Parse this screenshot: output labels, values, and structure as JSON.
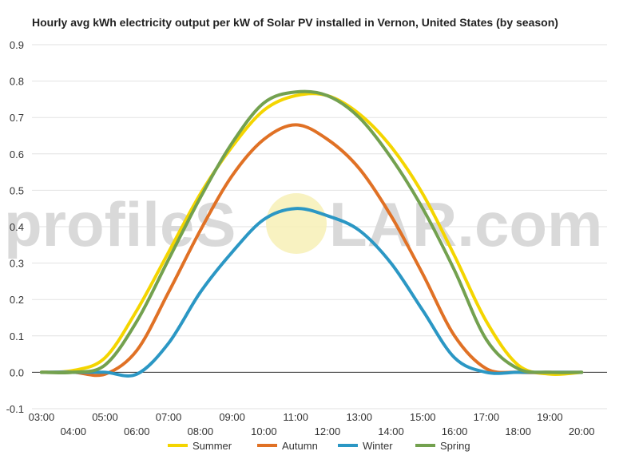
{
  "watermark": {
    "left": "profileS",
    "right": "LAR.com"
  },
  "chart_data": {
    "type": "line",
    "title": "Hourly avg kWh electricity output per kW of Solar PV installed in Vernon, United States (by season)",
    "xlabel": "",
    "ylabel": "",
    "x": [
      3,
      4,
      5,
      6,
      7,
      8,
      9,
      10,
      11,
      12,
      13,
      14,
      15,
      16,
      17,
      18,
      19,
      20
    ],
    "x_tick_labels": [
      "03:00",
      "04:00",
      "05:00",
      "06:00",
      "07:00",
      "08:00",
      "09:00",
      "10:00",
      "11:00",
      "12:00",
      "13:00",
      "14:00",
      "15:00",
      "16:00",
      "17:00",
      "18:00",
      "19:00",
      "20:00"
    ],
    "ylim": [
      -0.1,
      0.9
    ],
    "y_ticks": [
      "0.9",
      "0.8",
      "0.7",
      "0.6",
      "0.5",
      "0.4",
      "0.3",
      "0.2",
      "0.1",
      "0.0",
      "-0.1"
    ],
    "grid": true,
    "legend_position": "bottom",
    "series": [
      {
        "name": "Summer",
        "color": "#f4d500",
        "values": [
          0.0,
          0.005,
          0.04,
          0.17,
          0.33,
          0.49,
          0.62,
          0.72,
          0.76,
          0.76,
          0.71,
          0.62,
          0.49,
          0.32,
          0.14,
          0.02,
          -0.005,
          0.0
        ]
      },
      {
        "name": "Autumn",
        "color": "#e07125",
        "values": [
          0.0,
          0.0,
          -0.005,
          0.06,
          0.22,
          0.39,
          0.54,
          0.64,
          0.68,
          0.64,
          0.56,
          0.43,
          0.27,
          0.1,
          0.01,
          0.0,
          0.0,
          0.0
        ]
      },
      {
        "name": "Winter",
        "color": "#2b97c4",
        "values": [
          0.0,
          0.0,
          0.0,
          -0.005,
          0.08,
          0.22,
          0.33,
          0.42,
          0.45,
          0.43,
          0.39,
          0.3,
          0.17,
          0.04,
          0.0,
          0.0,
          0.0,
          0.0
        ]
      },
      {
        "name": "Spring",
        "color": "#73a14f",
        "values": [
          0.0,
          0.0,
          0.02,
          0.14,
          0.31,
          0.48,
          0.63,
          0.74,
          0.77,
          0.76,
          0.7,
          0.59,
          0.45,
          0.28,
          0.09,
          0.01,
          0.0,
          0.0
        ]
      }
    ]
  }
}
